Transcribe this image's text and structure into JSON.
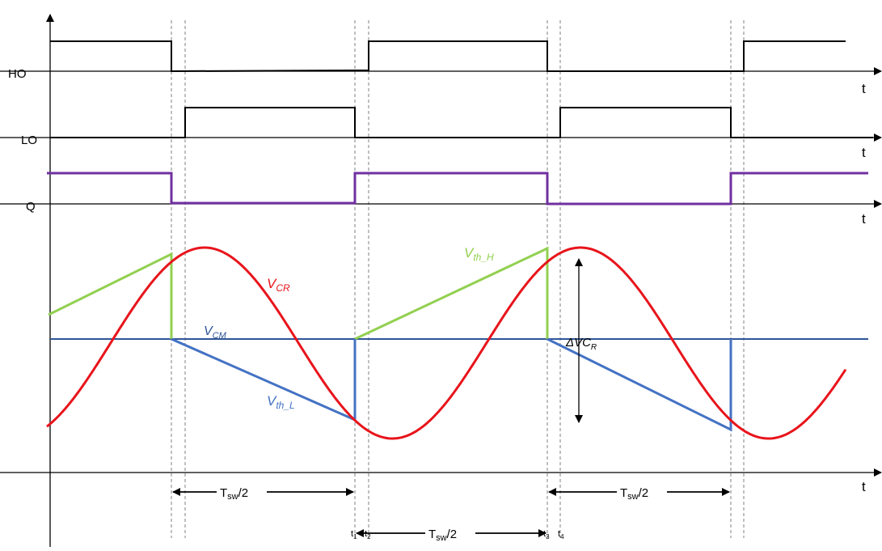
{
  "signals": {
    "ho": "HO",
    "lo": "LO",
    "q": "Q"
  },
  "axes": {
    "t_label": "t"
  },
  "curves": {
    "vcr": {
      "main": "V",
      "sub": "CR",
      "color": "#e8141b"
    },
    "vcm": {
      "main": "V",
      "sub": "CM",
      "color": "#2f5597"
    },
    "vth_h": {
      "main": "V",
      "sub": "th_H",
      "color": "#92d050"
    },
    "vth_l": {
      "main": "V",
      "sub": "th_L",
      "color": "#4472c4"
    },
    "delta": {
      "main": "ΔVC",
      "sub": "R"
    }
  },
  "intervals": {
    "tsw_main": "T",
    "tsw_sub": "sw",
    "tsw_tail": "/2"
  },
  "ticks": [
    {
      "main": "t",
      "sub": "1"
    },
    {
      "main": "t",
      "sub": "2"
    },
    {
      "main": "t",
      "sub": "3"
    },
    {
      "main": "t",
      "sub": "4"
    }
  ],
  "colors": {
    "axis": "#000000",
    "q_signal": "#7030a0",
    "guide": "#808080"
  }
}
